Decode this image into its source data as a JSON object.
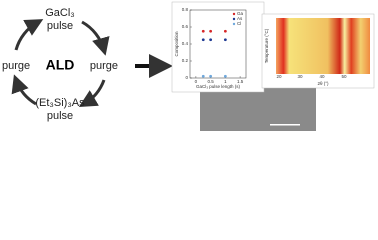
{
  "cycle": {
    "center": "ALD",
    "top": [
      "GaCl₃",
      "pulse"
    ],
    "left": "purge",
    "right": "purge",
    "bottom": [
      "(Et₃Si)₃As",
      "pulse"
    ]
  },
  "chart_data": {
    "type": "scatter",
    "xlabel": "GaCl₃ pulse length (s)",
    "ylabel": "Composition",
    "xlim": [
      -0.2,
      1.7
    ],
    "xticks": [
      0,
      0.5,
      1,
      1.5
    ],
    "ylim": [
      0,
      0.8
    ],
    "yticks": [
      0,
      0.2,
      0.4,
      0.6,
      0.8
    ],
    "x": [
      0.25,
      0.5,
      1.0
    ],
    "series": [
      {
        "name": "Ga",
        "color": "#d62728",
        "values": [
          0.55,
          0.55,
          0.55
        ]
      },
      {
        "name": "As",
        "color": "#1f3a93",
        "values": [
          0.45,
          0.45,
          0.45
        ]
      },
      {
        "name": "Cl",
        "color": "#6fa8dc",
        "values": [
          0.02,
          0.02,
          0.02
        ]
      }
    ],
    "legend": "upper-right"
  },
  "heatmap": {
    "xlabel": "2θ (°)",
    "ylabel": "Temperature (°C)",
    "xticks": [
      "20",
      "30",
      "40",
      "50"
    ]
  }
}
